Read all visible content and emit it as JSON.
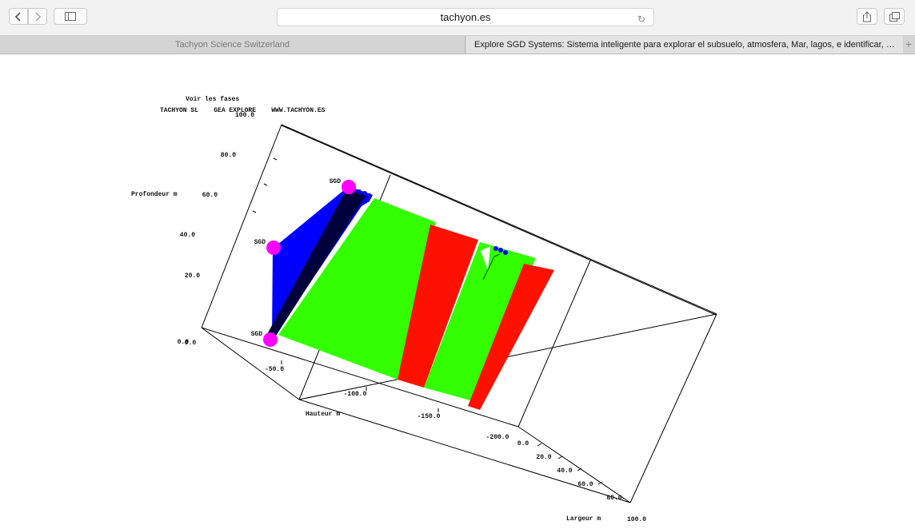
{
  "browser": {
    "url": "tachyon.es",
    "tabs": [
      {
        "label": "Tachyon Science Switzerland"
      },
      {
        "label": "Explore SGD Systems: Sistema inteligente para explorar el subsuelo, atmosfera, Mar, lagos, e identificar, p..."
      }
    ],
    "new_tab": "+",
    "icons": {
      "back": "chevron-left-icon",
      "forward": "chevron-right-icon",
      "sidebar": "sidebar-icon",
      "reload": "reload-icon",
      "share": "share-icon",
      "tabs": "tabs-overview-icon"
    }
  },
  "page": {
    "header_line1": "Voir les fases",
    "header_line2": "TACHYON SL    GEA EXPLORE    WWW.TACHYON.ES"
  },
  "chart_data": {
    "type": "3d-surface",
    "axes": {
      "profondeur": {
        "label": "Profondeur m",
        "ticks": [
          "0.0",
          "20.0",
          "40.0",
          "60.0",
          "80.0",
          "100.0"
        ]
      },
      "hauteur": {
        "label": "Hauteur m",
        "ticks": [
          "0.0",
          "-50.0",
          "-100.0",
          "-150.0",
          "-200.0"
        ]
      },
      "largeur": {
        "label": "Largeur m",
        "ticks": [
          "0.0",
          "20.0",
          "40.0",
          "60.0",
          "80.0",
          "100.0"
        ]
      }
    },
    "markers": [
      {
        "label": "SGD"
      },
      {
        "label": "SGD"
      },
      {
        "label": "SGD"
      }
    ],
    "colors": {
      "blue": "#0000ff",
      "navy": "#00003c",
      "green": "#33ff00",
      "red": "#ff1100",
      "magenta": "#ff00ff",
      "black": "#000000"
    }
  }
}
